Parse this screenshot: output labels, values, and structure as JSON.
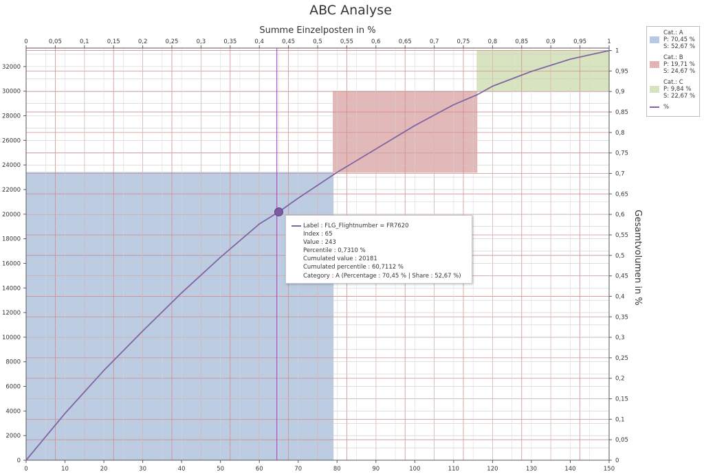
{
  "chart_data": {
    "type": "line",
    "title": "ABC Analyse",
    "xlabel": "",
    "ylabel": "",
    "x2label": "Summe Einzelposten in %",
    "y2label": "Gesamtvolumen in %",
    "xlim": [
      0,
      150
    ],
    "ylim": [
      0,
      33500
    ],
    "x2lim": [
      0,
      1
    ],
    "y2lim": [
      0,
      1
    ],
    "x_ticks": [
      "0",
      "10",
      "20",
      "30",
      "40",
      "50",
      "60",
      "70",
      "80",
      "90",
      "100",
      "110",
      "120",
      "130",
      "140",
      "150"
    ],
    "y_ticks": [
      "0",
      "2000",
      "4000",
      "6000",
      "8000",
      "10000",
      "12000",
      "14000",
      "16000",
      "18000",
      "20000",
      "22000",
      "24000",
      "26000",
      "28000",
      "30000",
      "32000"
    ],
    "x2_ticks": [
      "0",
      "0,05",
      "0,1",
      "0,15",
      "0,2",
      "0,25",
      "0,3",
      "0,35",
      "0,4",
      "0,45",
      "0,5",
      "0,55",
      "0,6",
      "0,65",
      "0,7",
      "0,75",
      "0,8",
      "0,85",
      "0,9",
      "0,95",
      "1"
    ],
    "y2_ticks": [
      "0",
      "0,05",
      "0,1",
      "0,15",
      "0,2",
      "0,25",
      "0,3",
      "0,35",
      "0,4",
      "0,45",
      "0,5",
      "0,55",
      "0,6",
      "0,65",
      "0,7",
      "0,75",
      "0,8",
      "0,85",
      "0,9",
      "0,95",
      "1"
    ],
    "grid": true,
    "legend_position": "right",
    "series": [
      {
        "name": "%",
        "x": [
          0,
          10,
          20,
          30,
          40,
          50,
          60,
          65,
          70,
          80,
          90,
          100,
          110,
          116,
          120,
          130,
          140,
          150
        ],
        "y": [
          0,
          3800,
          7300,
          10500,
          13600,
          16500,
          19200,
          20181,
          21300,
          23400,
          25300,
          27200,
          28900,
          29700,
          30400,
          31600,
          32600,
          33300
        ],
        "color": "#8064a2"
      }
    ],
    "regions": [
      {
        "category": "A",
        "x_from": 0,
        "x_to": 79,
        "y_from": 0,
        "y_to": 23400,
        "color": "#b7c9e2"
      },
      {
        "category": "B",
        "x_from": 79,
        "x_to": 116,
        "y_from": 23400,
        "y_to": 30000,
        "color": "#e2b4b4"
      },
      {
        "category": "C",
        "x_from": 116,
        "x_to": 150,
        "y_from": 30000,
        "y_to": 33300,
        "color": "#d6e3bc"
      }
    ],
    "crosshair_x": 64.5,
    "highlight_point": {
      "x": 65,
      "y": 20181
    }
  },
  "legend": [
    {
      "line1": "Cat.: A",
      "line2": "P: 70,45 %",
      "line3": "S: 52,67 %",
      "color": "#b7c9e2"
    },
    {
      "line1": "Cat.: B",
      "line2": "P: 19,71 %",
      "line3": "S: 24,67 %",
      "color": "#e2b4b4"
    },
    {
      "line1": "Cat.: C",
      "line2": "P: 9,84 %",
      "line3": "S: 22,67 %",
      "color": "#d6e3bc"
    }
  ],
  "legend_line_label": "%",
  "tooltip": {
    "lines": [
      "Label : FLG_Flightnumber = FR7620",
      "Index : 65",
      "Value : 243",
      "Percentile : 0,7310 %",
      "Cumulated value : 20181",
      "Cumulated percentile : 60,7112 %",
      "Category : A (Percentage : 70,45 % | Share : 52,67 %)"
    ]
  }
}
